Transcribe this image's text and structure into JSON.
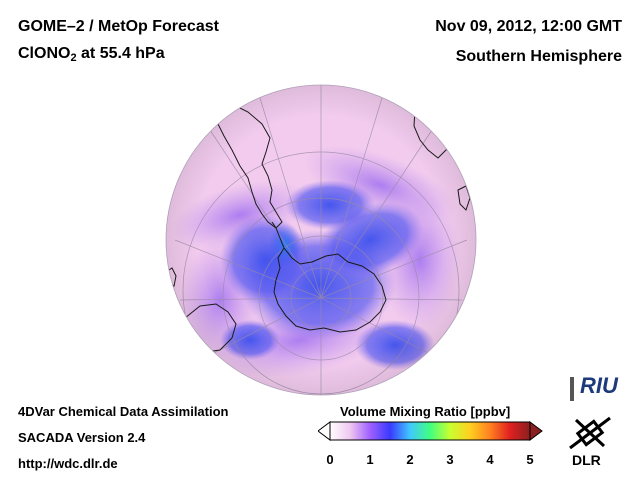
{
  "header": {
    "title": "GOME–2 / MetOp Forecast",
    "species_prefix": "ClONO",
    "species_subscript": "2",
    "species_suffix": " at 55.4 hPa",
    "datetime": "Nov 09, 2012, 12:00 GMT",
    "hemisphere": "Southern Hemisphere"
  },
  "footer": {
    "line1": "4DVar Chemical Data Assimilation",
    "line2": "SACADA Version 2.4",
    "line3": "http://wdc.dlr.de"
  },
  "colorbar": {
    "title": "Volume Mixing Ratio [ppbv]",
    "ticks": [
      "0",
      "1",
      "2",
      "3",
      "4",
      "5"
    ],
    "min": 0,
    "max": 5,
    "colors": [
      "#ffffff",
      "#f0c8f0",
      "#a060ff",
      "#3a3aff",
      "#40c8ff",
      "#40ff80",
      "#c8ff30",
      "#ffd020",
      "#ff8020",
      "#e02020",
      "#8a2020"
    ]
  },
  "logos": {
    "riu": "RIU",
    "dlr": "DLR"
  },
  "map": {
    "field_low_color": "#3c50ee",
    "field_mid_color": "#b090f0",
    "field_high_color": "#f0c8ec",
    "coast_color": "#1a1a1a",
    "grid_color": "#9a8aa8"
  }
}
